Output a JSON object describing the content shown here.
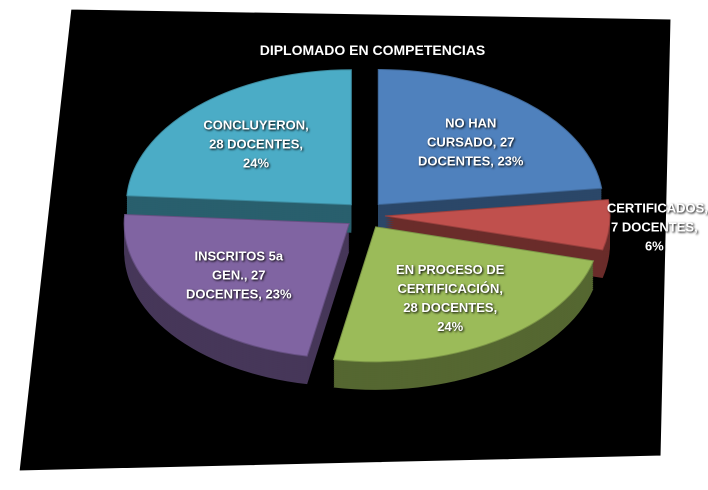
{
  "chart_data": {
    "type": "pie",
    "title": "DIPLOMADO EN COMPETENCIAS",
    "categories": [
      "NO HAN CURSADO",
      "CERTIFICADOS",
      "EN PROCESO DE CERTIFICACIÓN",
      "INSCRITOS 5a GEN.",
      "CONCLUYERON"
    ],
    "values": [
      27,
      7,
      28,
      27,
      28
    ],
    "value_labels": [
      "NO HAN CURSADO, 27 DOCENTES, 23%",
      "CERTIFICADOS, 7 DOCENTES, 6%",
      "EN PROCESO DE CERTIFICACIÓN, 28 DOCENTES, 24%",
      "INSCRITOS 5a GEN., 27 DOCENTES, 23%",
      "CONCLUYERON, 28 DOCENTES, 24%"
    ],
    "colors": [
      "#4f81bd",
      "#c0504d",
      "#9bbb59",
      "#8064a2",
      "#4bacc6"
    ]
  }
}
